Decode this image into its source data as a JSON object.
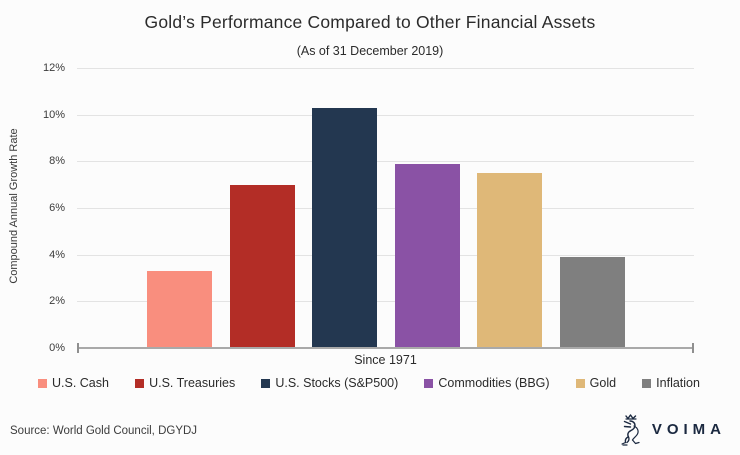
{
  "title": "Gold’s Performance Compared to Other Financial Assets",
  "subtitle": "(As of 31 December 2019)",
  "chart_data": {
    "type": "bar",
    "title": "Gold’s Performance Compared to Other Financial Assets",
    "subtitle": "(As of 31 December 2019)",
    "xlabel": "Since 1971",
    "ylabel": "Compound Annual Growth Rate",
    "ylim": [
      0,
      12
    ],
    "ytick_step": 2,
    "ytick_labels": [
      "0%",
      "2%",
      "4%",
      "6%",
      "8%",
      "10%",
      "12%"
    ],
    "grid": true,
    "legend_position": "bottom",
    "categories": [
      "U.S. Cash",
      "U.S. Treasuries",
      "U.S. Stocks (S&P500)",
      "Commodities (BBG)",
      "Gold",
      "Inflation"
    ],
    "values": [
      3.3,
      7.0,
      10.3,
      7.9,
      7.5,
      3.9
    ],
    "colors": [
      "#f98e7e",
      "#b32d26",
      "#233750",
      "#8a52a5",
      "#dfb878",
      "#7f7f7f"
    ]
  },
  "footer": {
    "source": "Source: World Gold Council, DGYDJ",
    "brand": "VOIMA"
  }
}
